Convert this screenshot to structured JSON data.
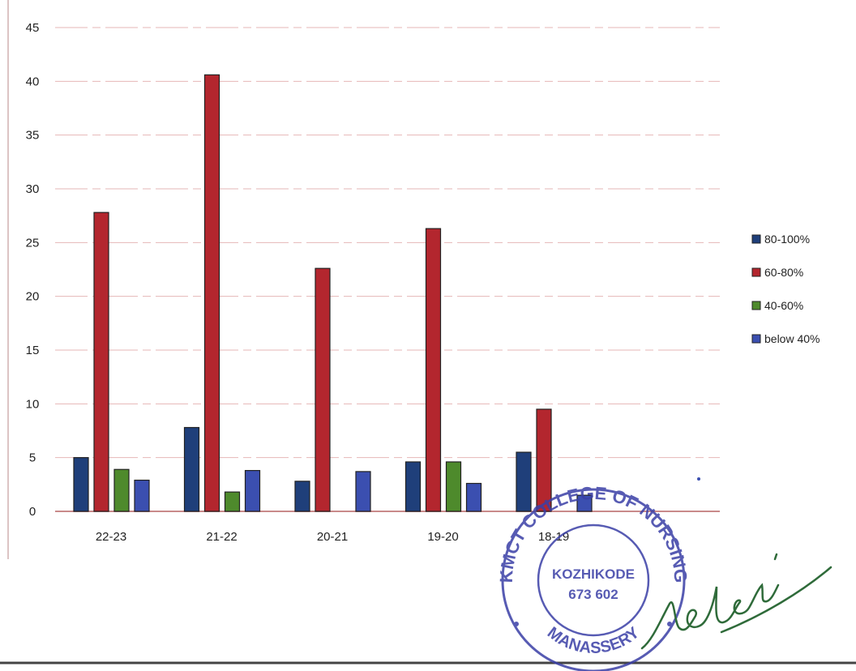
{
  "chart_data": {
    "type": "bar",
    "categories": [
      "22-23",
      "21-22",
      "20-21",
      "19-20",
      "18-19"
    ],
    "series": [
      {
        "name": "80-100%",
        "color": "#1f3f7a",
        "values": [
          5,
          7.8,
          2.8,
          4.6,
          5.5
        ]
      },
      {
        "name": "60-80%",
        "color": "#b3262e",
        "values": [
          27.8,
          40.6,
          22.6,
          26.3,
          9.5
        ]
      },
      {
        "name": "40-60%",
        "color": "#4e8a2c",
        "values": [
          3.9,
          1.8,
          0,
          4.6,
          0
        ]
      },
      {
        "name": "below 40%",
        "color": "#3b4fb0",
        "values": [
          2.9,
          3.8,
          3.7,
          2.6,
          1.5
        ]
      }
    ],
    "yticks": [
      "0",
      "5",
      "10",
      "15",
      "20",
      "25",
      "30",
      "35",
      "40",
      "45"
    ],
    "ylim": [
      0,
      45
    ],
    "grid": true,
    "legend_position": "right"
  },
  "stamp": {
    "top_text": "KMCT COLLEGE OF NURSING",
    "bottom_text": "MANASSERY",
    "line1": "KOZHIKODE",
    "line2": "673 602"
  }
}
